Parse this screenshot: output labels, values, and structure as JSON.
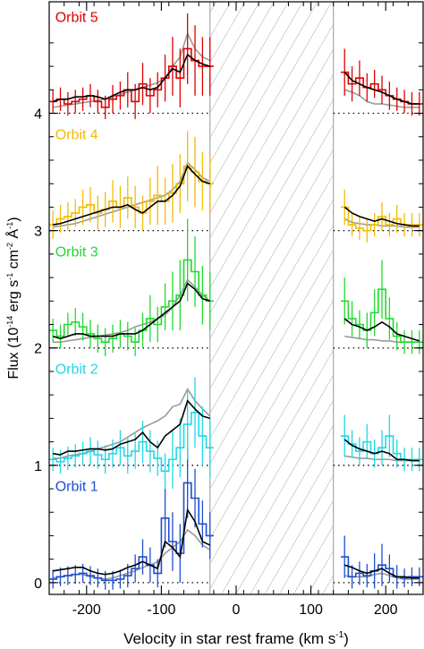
{
  "chart_data": {
    "type": "line",
    "xlabel": "Velocity in star rest frame (km s",
    "xlabel_sup": "-1",
    "xlabel_end": ")",
    "ylabel_parts": {
      "a": "Flux (10",
      "a_sup": "-14",
      "b": " erg s",
      "b_sup": "-1",
      "c": " cm",
      "c_sup": "-2",
      "d": " Å",
      "d_sup": "-1",
      "e": ")"
    },
    "xlim": [
      -250,
      250
    ],
    "ylim": [
      -0.1,
      4.95
    ],
    "x_ticks": [
      -200,
      -100,
      0,
      100,
      200
    ],
    "y_ticks": [
      0,
      1,
      2,
      3,
      4
    ],
    "hatched_region": [
      -35,
      130
    ],
    "model_colors": {
      "black": "#000000",
      "gray": "#9a9a9a"
    },
    "series": [
      {
        "name": "Orbit 1",
        "color": "#1f4fd1",
        "offset": 0,
        "x": [
          -245,
          -235,
          -225,
          -215,
          -205,
          -195,
          -185,
          -175,
          -165,
          -155,
          -145,
          -135,
          -125,
          -115,
          -105,
          -95,
          -85,
          -75,
          -65,
          -55,
          -45,
          -35,
          145,
          155,
          165,
          175,
          185,
          195,
          205,
          215,
          225,
          235,
          245
        ],
        "y": [
          0.03,
          0.05,
          0.06,
          0.07,
          0.08,
          0.06,
          0.04,
          0.02,
          0.02,
          0.03,
          0.06,
          0.12,
          0.22,
          0.15,
          0.08,
          0.55,
          0.35,
          0.25,
          0.85,
          0.72,
          0.5,
          0.4,
          0.22,
          0.05,
          0.08,
          0.06,
          0.1,
          0.15,
          0.12,
          0.05,
          0.04,
          0.05,
          0.05
        ],
        "err": [
          0.08,
          0.08,
          0.08,
          0.08,
          0.08,
          0.08,
          0.08,
          0.08,
          0.08,
          0.08,
          0.1,
          0.12,
          0.15,
          0.15,
          0.12,
          0.25,
          0.25,
          0.25,
          0.3,
          0.25,
          0.2,
          0.2,
          0.18,
          0.1,
          0.1,
          0.1,
          0.15,
          0.18,
          0.12,
          0.1,
          0.08,
          0.08,
          0.08
        ],
        "model_black": [
          0.1,
          0.11,
          0.12,
          0.13,
          0.13,
          0.1,
          0.08,
          0.07,
          0.08,
          0.1,
          0.13,
          0.15,
          0.18,
          0.15,
          0.12,
          0.35,
          0.3,
          0.22,
          0.62,
          0.52,
          0.35,
          0.32,
          0.15,
          0.13,
          0.1,
          0.08,
          0.1,
          0.12,
          0.08,
          0.05,
          0.05,
          0.04,
          0.04
        ],
        "model_gray": [
          0.04,
          0.05,
          0.06,
          0.07,
          0.07,
          0.05,
          0.04,
          0.03,
          0.04,
          0.06,
          0.08,
          0.1,
          0.13,
          0.15,
          0.18,
          0.25,
          0.3,
          0.35,
          0.45,
          0.4,
          0.32,
          0.28,
          0.06,
          0.05,
          0.05,
          0.05,
          0.07,
          0.08,
          0.06,
          0.04,
          0.03,
          0.03,
          0.03
        ]
      },
      {
        "name": "Orbit 2",
        "color": "#1fd8e6",
        "offset": 1,
        "x": [
          -245,
          -235,
          -225,
          -215,
          -205,
          -195,
          -185,
          -175,
          -165,
          -155,
          -145,
          -135,
          -125,
          -115,
          -105,
          -95,
          -85,
          -75,
          -65,
          -55,
          -45,
          -35,
          145,
          155,
          165,
          175,
          185,
          195,
          205,
          215,
          225,
          235,
          245
        ],
        "y": [
          1.05,
          1.03,
          1.06,
          1.08,
          1.1,
          1.12,
          1.09,
          1.05,
          1.1,
          1.15,
          1.08,
          1.12,
          1.2,
          1.12,
          1.06,
          0.95,
          1.05,
          1.15,
          1.35,
          1.45,
          1.25,
          1.15,
          1.25,
          1.18,
          1.12,
          1.2,
          1.1,
          1.15,
          1.25,
          1.1,
          1.05,
          1.05,
          1.05
        ],
        "err": [
          0.1,
          0.1,
          0.1,
          0.1,
          0.1,
          0.12,
          0.12,
          0.12,
          0.12,
          0.15,
          0.15,
          0.15,
          0.18,
          0.18,
          0.15,
          0.15,
          0.25,
          0.25,
          0.3,
          0.3,
          0.25,
          0.25,
          0.18,
          0.12,
          0.12,
          0.15,
          0.12,
          0.15,
          0.18,
          0.12,
          0.1,
          0.1,
          0.1
        ],
        "model_black": [
          1.1,
          1.09,
          1.12,
          1.12,
          1.13,
          1.14,
          1.14,
          1.13,
          1.14,
          1.18,
          1.2,
          1.22,
          1.28,
          1.2,
          1.15,
          1.25,
          1.3,
          1.35,
          1.55,
          1.48,
          1.42,
          1.4,
          1.22,
          1.17,
          1.14,
          1.12,
          1.1,
          1.12,
          1.1,
          1.05,
          1.05,
          1.04,
          1.04
        ],
        "model_gray": [
          1.06,
          1.06,
          1.08,
          1.09,
          1.1,
          1.12,
          1.14,
          1.16,
          1.18,
          1.2,
          1.24,
          1.28,
          1.32,
          1.35,
          1.38,
          1.42,
          1.5,
          1.52,
          1.65,
          1.55,
          1.48,
          1.42,
          1.08,
          1.07,
          1.06,
          1.06,
          1.05,
          1.05,
          1.05,
          1.04,
          1.04,
          1.04,
          1.04
        ]
      },
      {
        "name": "Orbit 3",
        "color": "#22d931",
        "offset": 2,
        "x": [
          -245,
          -235,
          -225,
          -215,
          -205,
          -195,
          -185,
          -175,
          -165,
          -155,
          -145,
          -135,
          -125,
          -115,
          -105,
          -95,
          -85,
          -75,
          -65,
          -55,
          -45,
          -35,
          145,
          155,
          165,
          175,
          185,
          195,
          205,
          215,
          225,
          235,
          245
        ],
        "y": [
          2.15,
          2.1,
          2.2,
          2.22,
          2.18,
          2.12,
          2.08,
          2.05,
          2.08,
          2.12,
          2.1,
          2.05,
          2.15,
          2.25,
          2.2,
          2.35,
          2.4,
          2.45,
          2.75,
          2.65,
          2.45,
          2.4,
          2.4,
          2.25,
          2.2,
          2.15,
          2.3,
          2.5,
          2.25,
          2.1,
          2.05,
          2.05,
          2.05
        ],
        "err": [
          0.1,
          0.1,
          0.1,
          0.12,
          0.12,
          0.12,
          0.12,
          0.12,
          0.12,
          0.12,
          0.12,
          0.12,
          0.15,
          0.2,
          0.15,
          0.2,
          0.25,
          0.3,
          0.35,
          0.3,
          0.25,
          0.25,
          0.2,
          0.15,
          0.12,
          0.15,
          0.2,
          0.25,
          0.18,
          0.12,
          0.1,
          0.1,
          0.1
        ],
        "model_black": [
          2.1,
          2.08,
          2.1,
          2.12,
          2.12,
          2.1,
          2.1,
          2.1,
          2.1,
          2.12,
          2.12,
          2.12,
          2.15,
          2.2,
          2.25,
          2.3,
          2.35,
          2.4,
          2.55,
          2.5,
          2.42,
          2.4,
          2.25,
          2.2,
          2.18,
          2.15,
          2.18,
          2.22,
          2.18,
          2.12,
          2.1,
          2.08,
          2.06
        ],
        "model_gray": [
          2.05,
          2.05,
          2.06,
          2.07,
          2.08,
          2.09,
          2.1,
          2.11,
          2.12,
          2.13,
          2.15,
          2.18,
          2.2,
          2.22,
          2.25,
          2.28,
          2.35,
          2.45,
          2.58,
          2.52,
          2.45,
          2.4,
          2.1,
          2.09,
          2.08,
          2.07,
          2.07,
          2.06,
          2.06,
          2.05,
          2.05,
          2.05,
          2.05
        ]
      },
      {
        "name": "Orbit 4",
        "color": "#f2bc00",
        "offset": 3,
        "x": [
          -245,
          -235,
          -225,
          -215,
          -205,
          -195,
          -185,
          -175,
          -165,
          -155,
          -145,
          -135,
          -125,
          -115,
          -105,
          -95,
          -85,
          -75,
          -65,
          -55,
          -45,
          -35,
          145,
          155,
          165,
          175,
          185,
          195,
          205,
          215,
          225,
          235,
          245
        ],
        "y": [
          3.05,
          3.1,
          3.12,
          3.15,
          3.2,
          3.22,
          3.15,
          3.18,
          3.25,
          3.2,
          3.28,
          3.2,
          3.15,
          3.25,
          3.3,
          3.25,
          3.32,
          3.4,
          3.55,
          3.5,
          3.42,
          3.4,
          3.2,
          3.05,
          3.02,
          3.0,
          3.05,
          3.12,
          3.05,
          3.1,
          3.05,
          3.05,
          3.05
        ],
        "err": [
          0.12,
          0.12,
          0.12,
          0.12,
          0.15,
          0.15,
          0.15,
          0.15,
          0.18,
          0.18,
          0.18,
          0.18,
          0.15,
          0.2,
          0.25,
          0.2,
          0.25,
          0.25,
          0.3,
          0.3,
          0.25,
          0.25,
          0.15,
          0.1,
          0.1,
          0.1,
          0.1,
          0.12,
          0.1,
          0.12,
          0.1,
          0.1,
          0.1
        ],
        "model_black": [
          3.05,
          3.06,
          3.08,
          3.1,
          3.12,
          3.14,
          3.16,
          3.18,
          3.2,
          3.2,
          3.22,
          3.18,
          3.15,
          3.2,
          3.25,
          3.25,
          3.3,
          3.38,
          3.55,
          3.48,
          3.42,
          3.4,
          3.2,
          3.15,
          3.12,
          3.1,
          3.08,
          3.1,
          3.08,
          3.06,
          3.05,
          3.04,
          3.04
        ],
        "model_gray": [
          3.03,
          3.04,
          3.05,
          3.06,
          3.08,
          3.1,
          3.12,
          3.14,
          3.16,
          3.18,
          3.2,
          3.22,
          3.24,
          3.26,
          3.28,
          3.3,
          3.35,
          3.42,
          3.58,
          3.52,
          3.45,
          3.42,
          3.1,
          3.07,
          3.06,
          3.05,
          3.05,
          3.04,
          3.04,
          3.04,
          3.03,
          3.03,
          3.03
        ]
      },
      {
        "name": "Orbit 5",
        "color": "#e00000",
        "offset": 4,
        "x": [
          -245,
          -235,
          -225,
          -215,
          -205,
          -195,
          -185,
          -175,
          -165,
          -155,
          -145,
          -135,
          -125,
          -115,
          -105,
          -95,
          -85,
          -75,
          -65,
          -55,
          -45,
          -35,
          145,
          155,
          165,
          175,
          185,
          195,
          205,
          215,
          225,
          235,
          245
        ],
        "y": [
          4.1,
          4.12,
          4.08,
          4.1,
          4.12,
          4.15,
          4.1,
          4.05,
          4.12,
          4.15,
          4.2,
          4.1,
          4.25,
          4.15,
          4.2,
          4.3,
          4.4,
          4.3,
          4.55,
          4.45,
          4.4,
          4.4,
          4.35,
          4.25,
          4.3,
          4.22,
          4.25,
          4.2,
          4.15,
          4.12,
          4.1,
          4.08,
          4.08
        ],
        "err": [
          0.1,
          0.1,
          0.1,
          0.1,
          0.1,
          0.1,
          0.1,
          0.1,
          0.12,
          0.12,
          0.15,
          0.15,
          0.18,
          0.15,
          0.15,
          0.2,
          0.25,
          0.25,
          0.3,
          0.3,
          0.25,
          0.25,
          0.2,
          0.15,
          0.15,
          0.12,
          0.12,
          0.12,
          0.12,
          0.1,
          0.1,
          0.1,
          0.1
        ],
        "model_black": [
          4.1,
          4.12,
          4.12,
          4.14,
          4.14,
          4.15,
          4.14,
          4.12,
          4.15,
          4.18,
          4.2,
          4.2,
          4.22,
          4.2,
          4.22,
          4.3,
          4.38,
          4.35,
          4.5,
          4.45,
          4.42,
          4.4,
          4.35,
          4.28,
          4.25,
          4.22,
          4.2,
          4.18,
          4.15,
          4.12,
          4.1,
          4.08,
          4.08
        ],
        "model_gray": [
          4.05,
          4.06,
          4.07,
          4.08,
          4.09,
          4.1,
          4.11,
          4.12,
          4.14,
          4.16,
          4.18,
          4.2,
          4.22,
          4.24,
          4.26,
          4.3,
          4.4,
          4.48,
          4.68,
          4.55,
          4.48,
          4.45,
          4.2,
          4.18,
          4.15,
          4.1,
          4.08,
          4.08,
          4.07,
          4.06,
          4.05,
          4.05,
          4.05
        ]
      }
    ]
  }
}
